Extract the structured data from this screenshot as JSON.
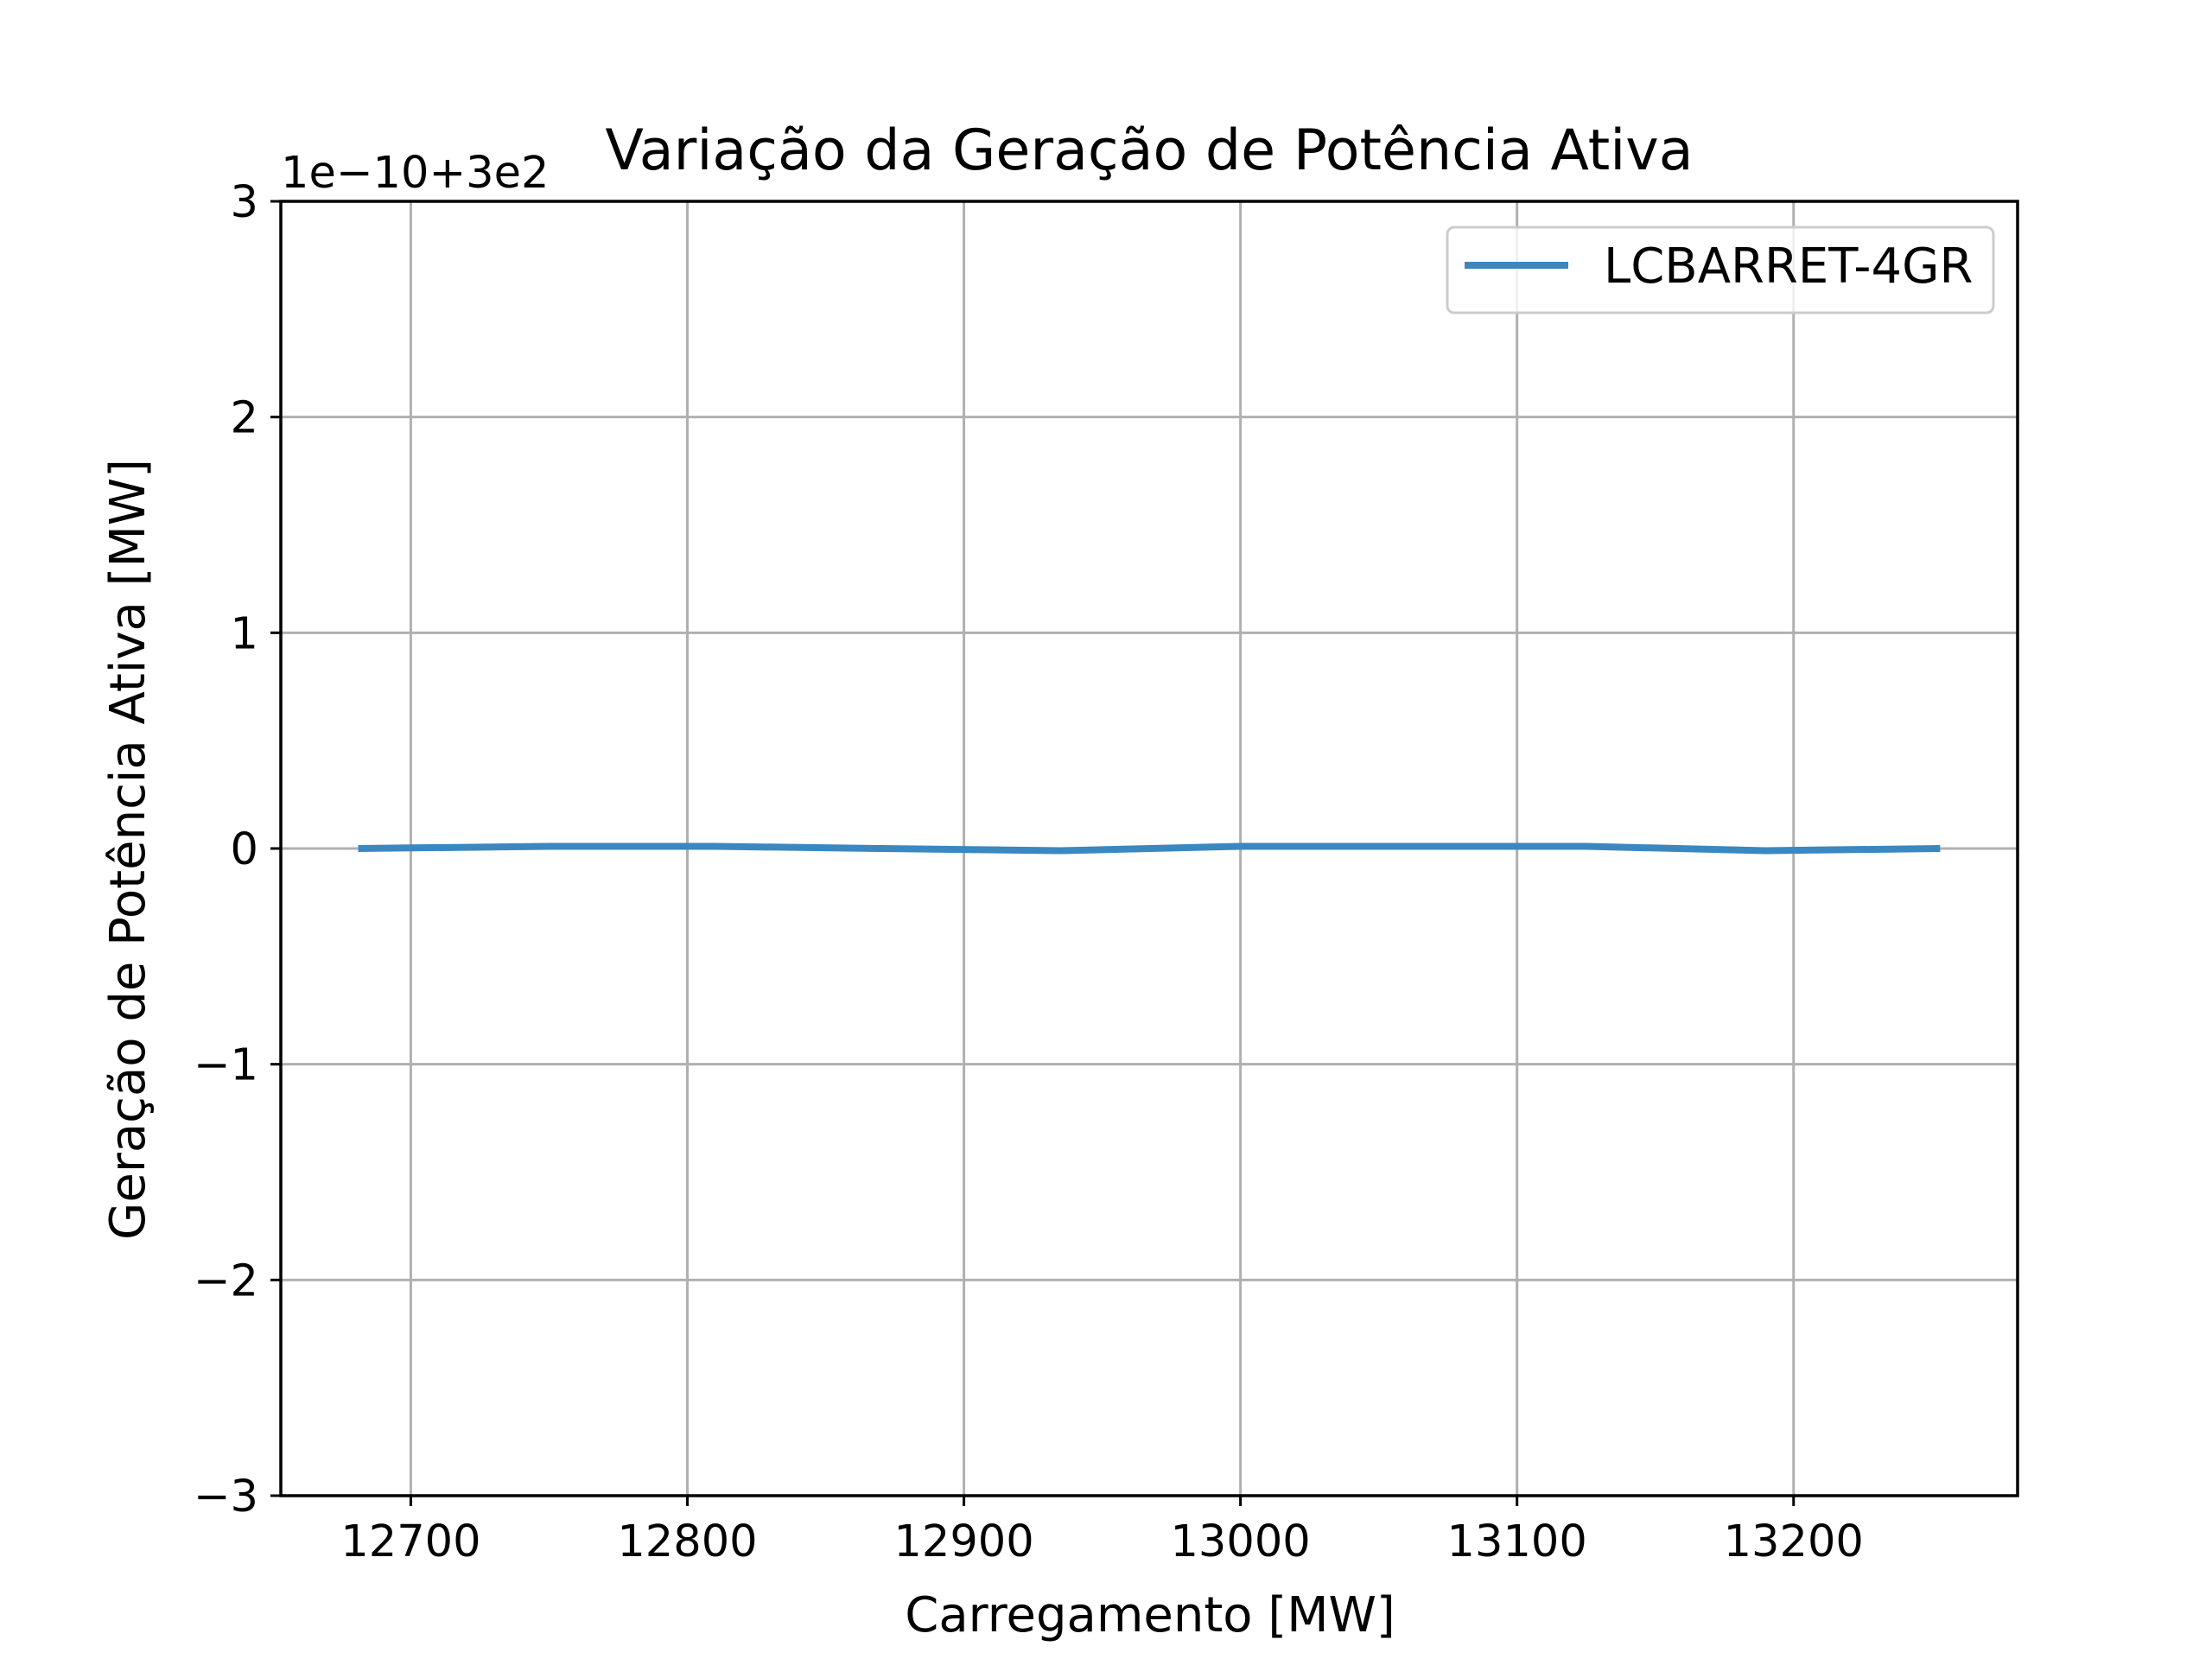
{
  "chart_data": {
    "type": "line",
    "title": "Variação da Geração de Potência Ativa",
    "xlabel": "Carregamento [MW]",
    "ylabel": "Geração de Potência Ativa [MW]",
    "y_offset_label": "1e−10+3e2",
    "xlim": [
      12653,
      13281
    ],
    "ylim": [
      -3,
      3
    ],
    "x_ticks": [
      12700,
      12800,
      12900,
      13000,
      13100,
      13200
    ],
    "x_tick_labels": [
      "12700",
      "12800",
      "12900",
      "13000",
      "13100",
      "13200"
    ],
    "y_ticks": [
      -3,
      -2,
      -1,
      0,
      1,
      2,
      3
    ],
    "y_tick_labels": [
      "−3",
      "−2",
      "−1",
      "0",
      "1",
      "2",
      "3"
    ],
    "grid": true,
    "legend_position": "top-right",
    "series": [
      {
        "name": "LCBARRET-4GR",
        "color": "#3b87c0",
        "x": [
          12681,
          12750,
          12810,
          12870,
          12935,
          13000,
          13060,
          13125,
          13190,
          13253
        ],
        "y": [
          0.0,
          0.01,
          0.01,
          0.0,
          -0.01,
          0.01,
          0.01,
          0.01,
          -0.01,
          0.0
        ]
      }
    ]
  }
}
